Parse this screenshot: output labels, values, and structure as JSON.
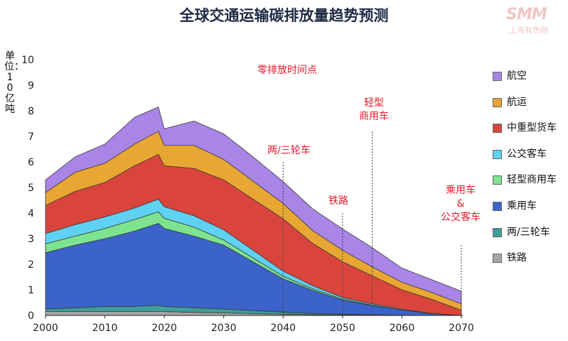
{
  "title": "全球交通运输碳排放量趋势预测",
  "watermark": {
    "logo": "SMM",
    "sub": "上海有色网"
  },
  "chart_data": {
    "type": "area",
    "stacked": true,
    "title": "全球交通运输碳排放量趋势预测",
    "ylabel": "单位：10亿吨",
    "xlabel": "",
    "xlim": [
      2000,
      2070
    ],
    "ylim": [
      0,
      10
    ],
    "xticks": [
      2000,
      2010,
      2020,
      2030,
      2040,
      2050,
      2060,
      2070
    ],
    "yticks": [
      0,
      1,
      2,
      3,
      4,
      5,
      6,
      7,
      8,
      9,
      10
    ],
    "grid": false,
    "legend_position": "right",
    "x": [
      2000,
      2005,
      2010,
      2015,
      2019,
      2020,
      2025,
      2030,
      2035,
      2040,
      2045,
      2050,
      2055,
      2060,
      2065,
      2070
    ],
    "series": [
      {
        "name": "铁路",
        "color": "#a6a6a6",
        "values": [
          0.15,
          0.15,
          0.15,
          0.15,
          0.15,
          0.15,
          0.12,
          0.1,
          0.07,
          0.05,
          0.03,
          0.02,
          0.01,
          0.0,
          0.0,
          0.0
        ]
      },
      {
        "name": "两/三轮车",
        "color": "#3d9e9a",
        "values": [
          0.1,
          0.15,
          0.2,
          0.2,
          0.25,
          0.2,
          0.18,
          0.15,
          0.12,
          0.08,
          0.05,
          0.03,
          0.02,
          0.01,
          0.0,
          0.0
        ]
      },
      {
        "name": "乘用车",
        "color": "#3b63c9",
        "values": [
          2.2,
          2.45,
          2.65,
          2.95,
          3.2,
          3.05,
          2.8,
          2.5,
          1.9,
          1.3,
          0.9,
          0.55,
          0.35,
          0.2,
          0.07,
          0.0
        ]
      },
      {
        "name": "轻型商用车",
        "color": "#7ee38f",
        "values": [
          0.35,
          0.35,
          0.4,
          0.45,
          0.45,
          0.4,
          0.35,
          0.2,
          0.15,
          0.1,
          0.06,
          0.04,
          0.02,
          0.01,
          0.0,
          0.0
        ]
      },
      {
        "name": "公交客车",
        "color": "#5fd1f2",
        "values": [
          0.4,
          0.45,
          0.45,
          0.45,
          0.5,
          0.45,
          0.45,
          0.4,
          0.3,
          0.2,
          0.12,
          0.06,
          0.05,
          0.03,
          0.01,
          0.0
        ]
      },
      {
        "name": "中重型货车",
        "color": "#d9453d",
        "values": [
          1.1,
          1.3,
          1.35,
          1.65,
          1.75,
          1.6,
          1.85,
          1.95,
          2.0,
          2.05,
          1.65,
          1.4,
          1.1,
          0.75,
          0.55,
          0.2
        ]
      },
      {
        "name": "航运",
        "color": "#e8a733",
        "values": [
          0.5,
          0.75,
          0.75,
          0.85,
          0.9,
          0.8,
          0.9,
          0.8,
          0.7,
          0.6,
          0.5,
          0.45,
          0.35,
          0.3,
          0.27,
          0.25
        ]
      },
      {
        "name": "航空",
        "color": "#a885e6",
        "values": [
          0.5,
          0.6,
          0.75,
          1.05,
          0.95,
          0.65,
          0.95,
          1.0,
          0.95,
          0.85,
          0.85,
          0.83,
          0.75,
          0.55,
          0.5,
          0.5
        ]
      }
    ],
    "legend_order": [
      "航空",
      "航运",
      "中重型货车",
      "公交客车",
      "轻型商用车",
      "乘用车",
      "两/三轮车",
      "铁路"
    ],
    "annotations": [
      {
        "text": "零排放时间点",
        "header": true
      },
      {
        "text": "两/三轮车",
        "x": 2040
      },
      {
        "text": "铁路",
        "x": 2050
      },
      {
        "text": "轻型商用车",
        "x": 2055
      },
      {
        "text": "乘用车 & 公交客车",
        "x": 2070
      }
    ]
  },
  "annotations_text": {
    "header": "零排放时间点",
    "two_three": "两/三轮车",
    "rail": "铁路",
    "lcv_1": "轻型",
    "lcv_2": "商用车",
    "car_1": "乘用车",
    "car_2": "&",
    "car_3": "公交客车"
  }
}
